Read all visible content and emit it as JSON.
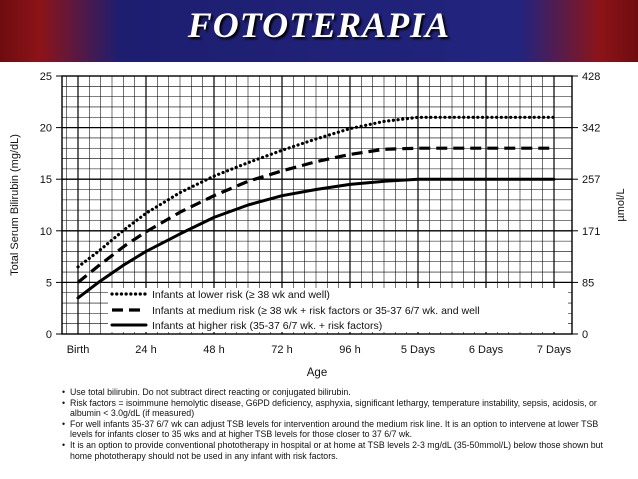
{
  "slide": {
    "title": "FOTOTERAPIA"
  },
  "chart_data": {
    "type": "line",
    "x_categories": [
      "Birth",
      "24 h",
      "48 h",
      "72 h",
      "96 h",
      "5 Days",
      "6 Days",
      "7 Days"
    ],
    "xlabel": "Age",
    "ylabel": "Total Serum Bilirubin (mg/dL)",
    "ylim": [
      0,
      25
    ],
    "y_ticks": [
      0,
      5,
      10,
      15,
      20,
      25
    ],
    "y2label": "µmol/L",
    "y2_ticks": [
      {
        "value": 0,
        "label": "0"
      },
      {
        "value": 5,
        "label": "85"
      },
      {
        "value": 10,
        "label": "171"
      },
      {
        "value": 15,
        "label": "257"
      },
      {
        "value": 20,
        "label": "342"
      },
      {
        "value": 25,
        "label": "428"
      }
    ],
    "grid": true,
    "series": [
      {
        "name": "Infants at lower risk (≥ 38 wk and well)",
        "style": "dotted",
        "points": [
          [
            0.0,
            6.5
          ],
          [
            0.3,
            8.0
          ],
          [
            0.7,
            10.2
          ],
          [
            1.0,
            11.7
          ],
          [
            1.5,
            13.7
          ],
          [
            2.0,
            15.3
          ],
          [
            2.5,
            16.6
          ],
          [
            3.0,
            17.8
          ],
          [
            3.5,
            18.9
          ],
          [
            4.0,
            19.9
          ],
          [
            4.5,
            20.6
          ],
          [
            5.0,
            21.0
          ],
          [
            6.0,
            21.0
          ],
          [
            7.0,
            21.0
          ]
        ]
      },
      {
        "name": "Infants at medium risk (≥ 38 wk + risk factors or 35-37 6/7 wk. and well",
        "style": "dashed",
        "points": [
          [
            0.0,
            5.0
          ],
          [
            0.3,
            6.6
          ],
          [
            0.7,
            8.6
          ],
          [
            1.0,
            9.9
          ],
          [
            1.5,
            11.8
          ],
          [
            2.0,
            13.4
          ],
          [
            2.5,
            14.8
          ],
          [
            3.0,
            15.8
          ],
          [
            3.5,
            16.7
          ],
          [
            4.0,
            17.4
          ],
          [
            4.5,
            17.9
          ],
          [
            5.0,
            18.0
          ],
          [
            6.0,
            18.0
          ],
          [
            7.0,
            18.0
          ]
        ]
      },
      {
        "name": "Infants at higher risk (35-37 6/7 wk. + risk factors)",
        "style": "solid",
        "points": [
          [
            0.0,
            3.5
          ],
          [
            0.3,
            5.0
          ],
          [
            0.7,
            6.8
          ],
          [
            1.0,
            8.0
          ],
          [
            1.5,
            9.7
          ],
          [
            2.0,
            11.3
          ],
          [
            2.5,
            12.5
          ],
          [
            3.0,
            13.4
          ],
          [
            3.5,
            14.0
          ],
          [
            4.0,
            14.5
          ],
          [
            4.5,
            14.8
          ],
          [
            5.0,
            15.0
          ],
          [
            6.0,
            15.0
          ],
          [
            7.0,
            15.0
          ]
        ]
      }
    ]
  },
  "notes": [
    "Use total bilirubin. Do not subtract direct reacting or conjugated bilirubin.",
    "Risk factors = isoimmune hemolytic disease, G6PD deficiency, asphyxia, significant lethargy, temperature instability, sepsis, acidosis, or albumin < 3.0g/dL (if measured)",
    "For well infants 35-37 6/7 wk can adjust TSB levels for intervention around the medium risk line. It is an option to intervene at lower TSB levels for infants closer to 35 wks and at higher TSB levels for those closer to 37 6/7 wk.",
    "It is an option to provide conventional phototherapy in hospital or at home at TSB levels 2-3 mg/dL (35-50mmol/L) below those shown but home phototherapy should not be used in any infant with risk factors."
  ]
}
